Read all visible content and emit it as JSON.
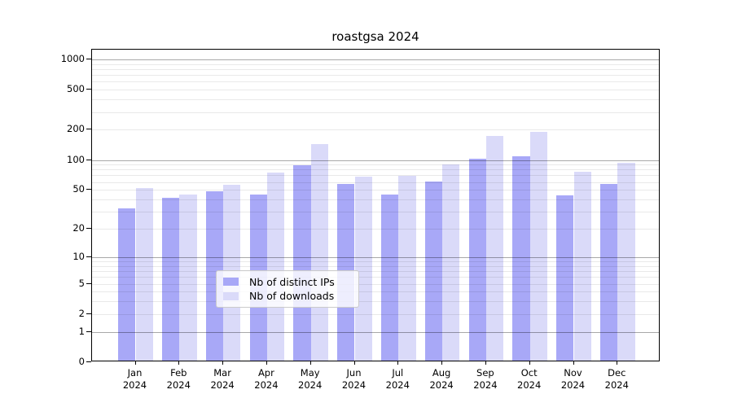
{
  "title": "roastgsa 2024",
  "chart_data": {
    "type": "bar",
    "title": "roastgsa 2024",
    "categories": [
      "Jan",
      "Feb",
      "Mar",
      "Apr",
      "May",
      "Jun",
      "Jul",
      "Aug",
      "Sep",
      "Oct",
      "Nov",
      "Dec"
    ],
    "category_year": "2024",
    "series": [
      {
        "name": "Nb of distinct IPs",
        "color": "#a8a8f7",
        "values": [
          31,
          40,
          47,
          43,
          86,
          55,
          43,
          59,
          100,
          105,
          42,
          55
        ]
      },
      {
        "name": "Nb of downloads",
        "color": "#dadaf9",
        "values": [
          50,
          43,
          54,
          72,
          140,
          65,
          67,
          87,
          168,
          185,
          73,
          90
        ]
      }
    ],
    "xlabel": "",
    "ylabel": "",
    "yscale": "log1p",
    "yticks": [
      0,
      1,
      2,
      5,
      10,
      20,
      50,
      100,
      200,
      500,
      1000
    ],
    "ylim": [
      0,
      1250
    ],
    "grid": true,
    "legend_position": "lower center"
  },
  "legend": {
    "items": [
      {
        "label": "Nb of distinct IPs",
        "color": "#a8a8f7"
      },
      {
        "label": "Nb of downloads",
        "color": "#dadaf9"
      }
    ]
  }
}
